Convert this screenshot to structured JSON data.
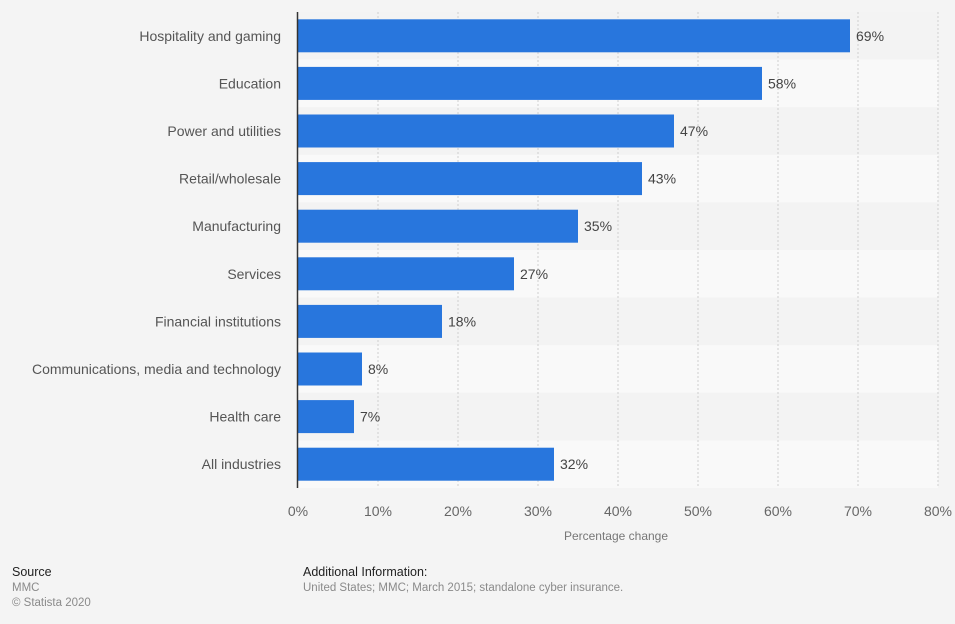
{
  "chart_data": {
    "type": "bar",
    "orientation": "horizontal",
    "title": "",
    "categories": [
      "Hospitality and gaming",
      "Education",
      "Power and utilities",
      "Retail/wholesale",
      "Manufacturing",
      "Services",
      "Financial institutions",
      "Communications, media and technology",
      "Health care",
      "All industries"
    ],
    "values": [
      69,
      58,
      47,
      43,
      35,
      27,
      18,
      8,
      7,
      32
    ],
    "value_labels": [
      "69%",
      "58%",
      "47%",
      "43%",
      "35%",
      "27%",
      "18%",
      "8%",
      "7%",
      "32%"
    ],
    "xlabel": "Percentage change",
    "ylabel": "",
    "xlim": [
      0,
      80
    ],
    "x_ticks": [
      0,
      10,
      20,
      30,
      40,
      50,
      60,
      70,
      80
    ],
    "x_tick_labels": [
      "0%",
      "10%",
      "20%",
      "30%",
      "40%",
      "50%",
      "60%",
      "70%",
      "80%"
    ],
    "grid": true,
    "legend": "none",
    "bar_color": "#2876dd"
  },
  "footer": {
    "source_title": "Source",
    "source_name": "MMC",
    "copyright": "© Statista 2020",
    "additional_title": "Additional Information:",
    "additional_text": "United States; MMC; March 2015; standalone cyber insurance."
  }
}
